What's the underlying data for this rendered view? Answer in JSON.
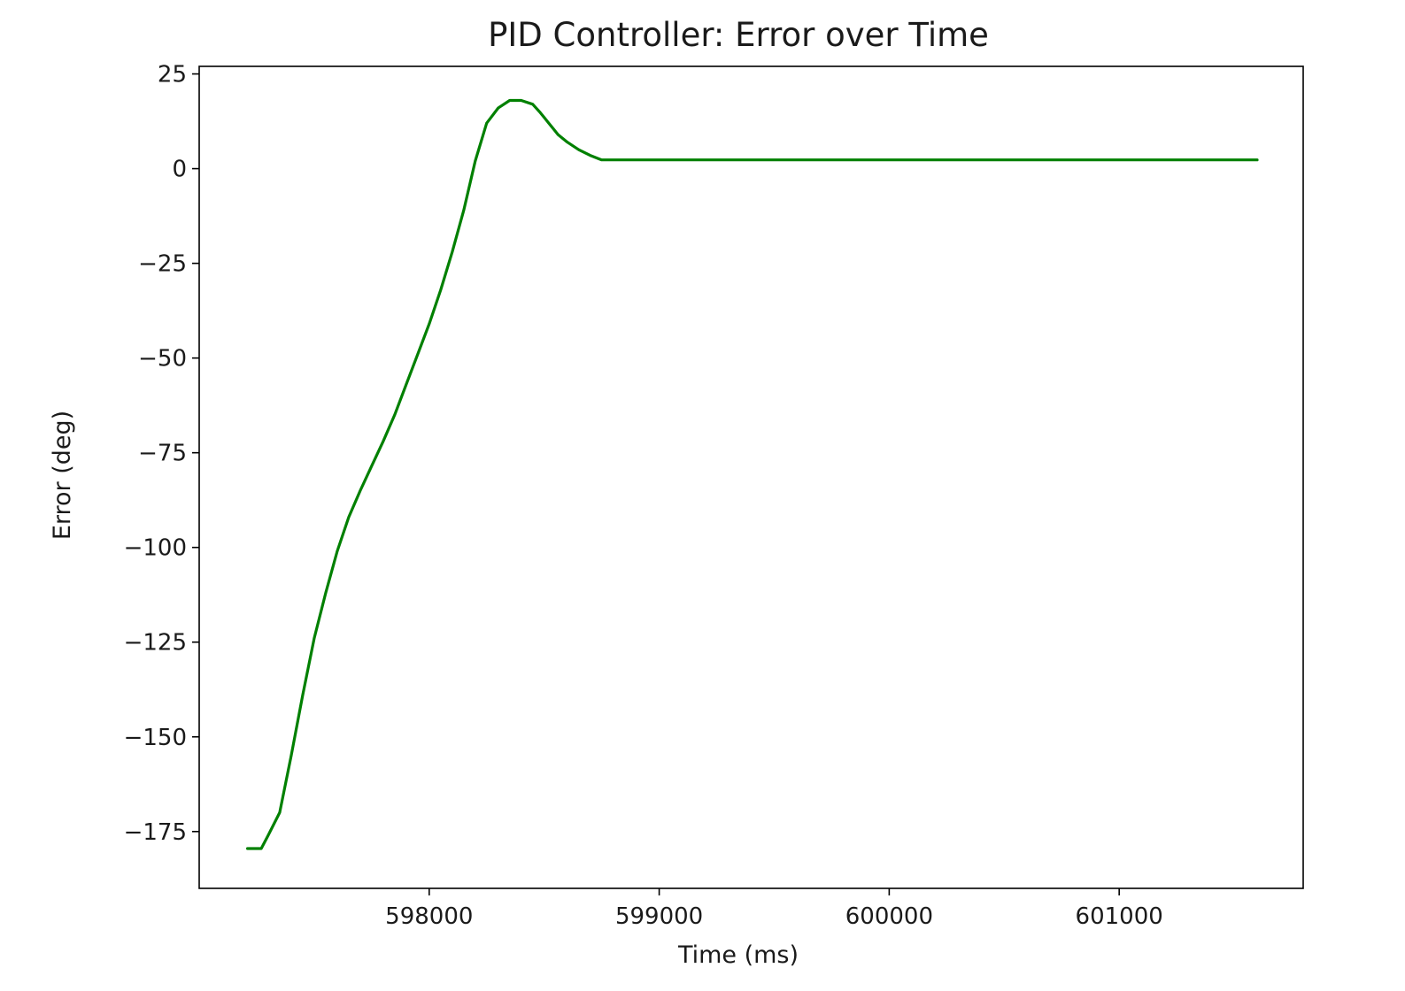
{
  "chart_data": {
    "type": "line",
    "title": "PID Controller: Error over Time",
    "xlabel": "Time (ms)",
    "ylabel": "Error (deg)",
    "xlim": [
      597000,
      601800
    ],
    "ylim": [
      -190,
      27
    ],
    "xticks": [
      598000,
      599000,
      600000,
      601000
    ],
    "xtick_labels": [
      "598000",
      "599000",
      "600000",
      "601000"
    ],
    "yticks": [
      25,
      0,
      -25,
      -50,
      -75,
      -100,
      -125,
      -150,
      -175
    ],
    "ytick_labels": [
      "25",
      "0",
      "−25",
      "−50",
      "−75",
      "−100",
      "−125",
      "−150",
      "−175"
    ],
    "grid": false,
    "line_color": "#008000",
    "series": [
      {
        "x": [
          597210,
          597240,
          597270,
          597300,
          597350,
          597400,
          597450,
          597500,
          597550,
          597600,
          597650,
          597700,
          597750,
          597800,
          597850,
          597900,
          597950,
          598000,
          598050,
          598100,
          598150,
          598200,
          598250,
          598300,
          598350,
          598400,
          598450,
          598480,
          598500,
          598520,
          598540,
          598560,
          598600,
          598650,
          598700,
          598750,
          598800,
          598840,
          599000,
          599500,
          600000,
          600500,
          601000,
          601600
        ],
        "y": [
          -179.5,
          -179.5,
          -179.5,
          -176,
          -170,
          -155,
          -139,
          -124,
          -112,
          -101,
          -92,
          -85,
          -78.5,
          -72,
          -65,
          -57,
          -49,
          -41,
          -32,
          -22,
          -11,
          2,
          12,
          16,
          18,
          18,
          17,
          15,
          13.5,
          12,
          10.5,
          9,
          7,
          5,
          3.5,
          2.3,
          2.3,
          2.3,
          2.3,
          2.3,
          2.3,
          2.3,
          2.3,
          2.3
        ]
      }
    ]
  }
}
